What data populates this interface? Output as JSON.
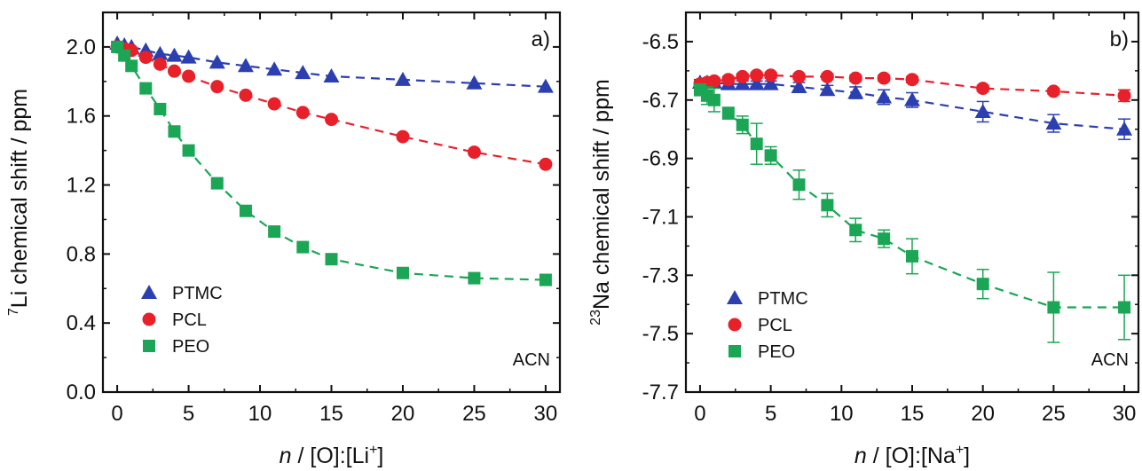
{
  "chart_data": [
    {
      "type": "scatter",
      "panel_label": "a)",
      "annotation": "ACN",
      "xlabel": {
        "n": "n",
        "rest": " / [O]:[Li",
        "sup": "+",
        "end": "]"
      },
      "ylabel": {
        "sup": "7",
        "rest": "Li chemical shift / ppm"
      },
      "xlim": [
        -1,
        31
      ],
      "ylim": [
        0,
        2.2
      ],
      "xticks": [
        "0",
        "5",
        "10",
        "15",
        "20",
        "25",
        "30"
      ],
      "yticks": [
        "0.0",
        "0.4",
        "0.8",
        "1.2",
        "1.6",
        "2.0"
      ],
      "legend_placement": "bottom-left",
      "series": [
        {
          "name": "PTMC",
          "color": "#2b3fb0",
          "marker": "triangle",
          "x": [
            0,
            0.5,
            1,
            2,
            3,
            4,
            5,
            7,
            9,
            11,
            13,
            15,
            20,
            25,
            30
          ],
          "y": [
            2.02,
            2.01,
            2.0,
            1.98,
            1.96,
            1.95,
            1.94,
            1.91,
            1.89,
            1.87,
            1.85,
            1.83,
            1.81,
            1.79,
            1.77
          ]
        },
        {
          "name": "PCL",
          "color": "#e8202a",
          "marker": "circle",
          "x": [
            0,
            0.5,
            1,
            2,
            3,
            4,
            5,
            7,
            9,
            11,
            13,
            15,
            20,
            25,
            30
          ],
          "y": [
            2.0,
            1.99,
            1.98,
            1.94,
            1.9,
            1.86,
            1.83,
            1.77,
            1.72,
            1.67,
            1.62,
            1.58,
            1.48,
            1.39,
            1.32
          ]
        },
        {
          "name": "PEO",
          "color": "#1aa655",
          "marker": "square",
          "x": [
            0,
            0.5,
            1,
            2,
            3,
            4,
            5,
            7,
            9,
            11,
            13,
            15,
            20,
            25,
            30
          ],
          "y": [
            2.0,
            1.95,
            1.89,
            1.76,
            1.64,
            1.51,
            1.4,
            1.21,
            1.05,
            0.93,
            0.84,
            0.77,
            0.69,
            0.66,
            0.65
          ]
        }
      ]
    },
    {
      "type": "scatter",
      "panel_label": "b)",
      "annotation": "ACN",
      "xlabel": {
        "n": "n",
        "rest": " / [O]:[Na",
        "sup": "+",
        "end": "]"
      },
      "ylabel": {
        "sup": "23",
        "rest": "Na chemical shift / ppm"
      },
      "xlim": [
        -1,
        31
      ],
      "ylim": [
        -7.7,
        -6.4
      ],
      "xticks": [
        "0",
        "5",
        "10",
        "15",
        "20",
        "25",
        "30"
      ],
      "yticks": [
        "-6.5",
        "-6.7",
        "-6.9",
        "-7.1",
        "-7.3",
        "-7.5",
        "-7.7"
      ],
      "legend_placement": "bottom-left",
      "series": [
        {
          "name": "PTMC",
          "color": "#2b3fb0",
          "marker": "triangle",
          "x": [
            0,
            0.5,
            1,
            2,
            3,
            4,
            5,
            7,
            9,
            11,
            13,
            15,
            20,
            25,
            30
          ],
          "y": [
            -6.64,
            -6.64,
            -6.64,
            -6.645,
            -6.645,
            -6.645,
            -6.645,
            -6.655,
            -6.665,
            -6.675,
            -6.69,
            -6.7,
            -6.74,
            -6.78,
            -6.8
          ],
          "err": [
            0.01,
            0.01,
            0.01,
            0.01,
            0.01,
            0.01,
            0.01,
            0.015,
            0.015,
            0.02,
            0.025,
            0.025,
            0.035,
            0.03,
            0.035
          ]
        },
        {
          "name": "PCL",
          "color": "#e8202a",
          "marker": "circle",
          "x": [
            0,
            0.5,
            1,
            2,
            3,
            4,
            5,
            7,
            9,
            11,
            13,
            15,
            20,
            25,
            30
          ],
          "y": [
            -6.645,
            -6.64,
            -6.635,
            -6.63,
            -6.62,
            -6.615,
            -6.615,
            -6.62,
            -6.62,
            -6.625,
            -6.625,
            -6.63,
            -6.66,
            -6.67,
            -6.685
          ],
          "err": [
            0.01,
            0.01,
            0.01,
            0.01,
            0.01,
            0.01,
            0.01,
            0.01,
            0.01,
            0.01,
            0.01,
            0.01,
            0.01,
            0.01,
            0.02
          ]
        },
        {
          "name": "PEO",
          "color": "#1aa655",
          "marker": "square",
          "x": [
            0,
            0.5,
            1,
            2,
            3,
            4,
            5,
            7,
            9,
            11,
            13,
            15,
            20,
            25,
            30
          ],
          "y": [
            -6.665,
            -6.685,
            -6.7,
            -6.745,
            -6.785,
            -6.85,
            -6.89,
            -6.99,
            -7.06,
            -7.145,
            -7.175,
            -7.235,
            -7.33,
            -7.41,
            -7.41
          ],
          "err": [
            0.02,
            0.03,
            0.04,
            0.02,
            0.03,
            0.07,
            0.03,
            0.05,
            0.04,
            0.04,
            0.03,
            0.06,
            0.05,
            0.12,
            0.11
          ]
        }
      ]
    }
  ]
}
